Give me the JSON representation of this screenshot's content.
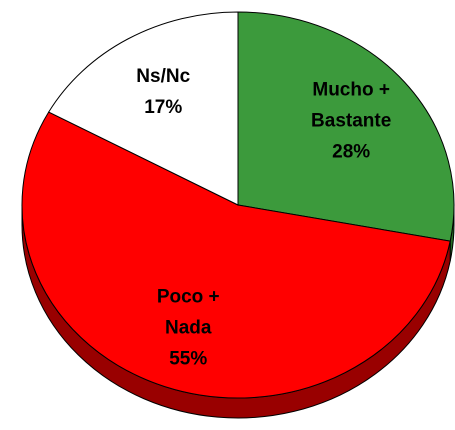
{
  "chart_data": {
    "type": "pie",
    "categories": [
      "Mucho +\nBastante",
      "Poco +\nNada",
      "Ns/Nc"
    ],
    "values": [
      28,
      55,
      17
    ],
    "value_labels": [
      "28%",
      "55%",
      "17%"
    ],
    "colors": [
      "#3c9a3c",
      "#ff0000",
      "#ffffff"
    ],
    "side_colors": [
      "#256b25",
      "#990000",
      "#cccccc"
    ],
    "three_d": true
  }
}
